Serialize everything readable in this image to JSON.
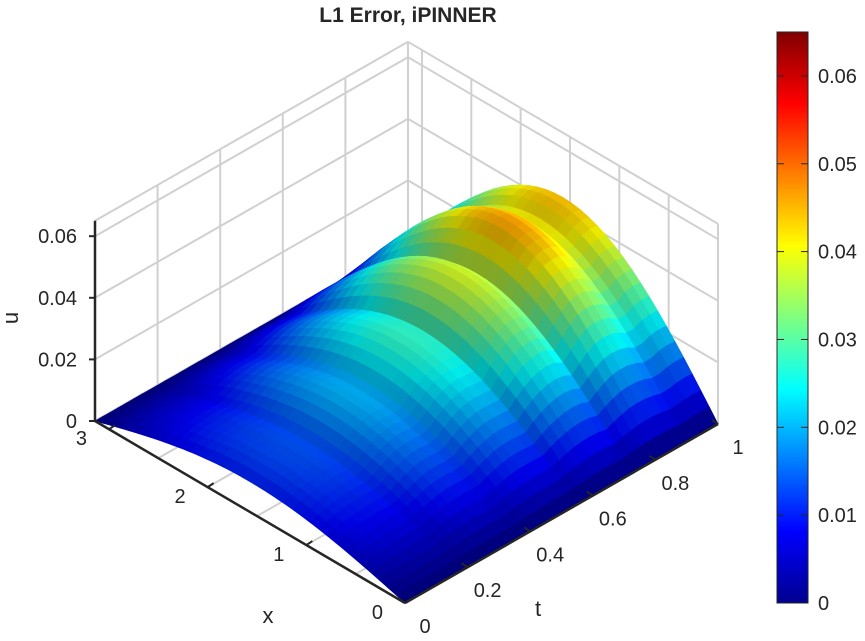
{
  "chart_data": {
    "type": "surface",
    "title": "L1 Error, iPINNER",
    "xlabel": "x",
    "tlabel": "t",
    "zlabel": "u",
    "x_range": [
      0,
      3.1416
    ],
    "t_range": [
      0,
      1
    ],
    "z_range": [
      0,
      0.065
    ],
    "x_ticks": [
      "0",
      "1",
      "2",
      "3"
    ],
    "t_ticks": [
      "0",
      "0.2",
      "0.4",
      "0.6",
      "0.8",
      "1"
    ],
    "z_ticks": [
      "0",
      "0.02",
      "0.04",
      "0.06"
    ],
    "colorbar": {
      "colormap": "jet",
      "range": [
        0,
        0.065
      ],
      "ticks": [
        "0",
        "0.01",
        "0.02",
        "0.03",
        "0.04",
        "0.05",
        "0.06"
      ]
    },
    "grid": true,
    "surface_profile": {
      "t": [
        0,
        0.1,
        0.2,
        0.3,
        0.4,
        0.5,
        0.6,
        0.7,
        0.8,
        0.9,
        1.0
      ],
      "peak_u": [
        0.012,
        0.013,
        0.016,
        0.02,
        0.024,
        0.029,
        0.035,
        0.041,
        0.046,
        0.048,
        0.044
      ]
    }
  }
}
